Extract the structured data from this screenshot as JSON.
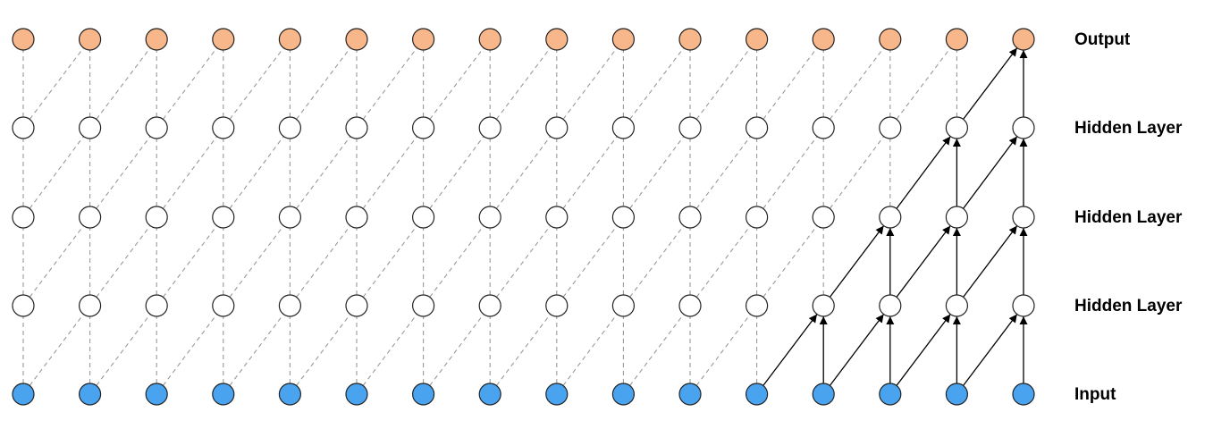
{
  "layers": [
    {
      "label": "Output"
    },
    {
      "label": "Hidden Layer"
    },
    {
      "label": "Hidden Layer"
    },
    {
      "label": "Hidden Layer"
    },
    {
      "label": "Input"
    }
  ]
}
